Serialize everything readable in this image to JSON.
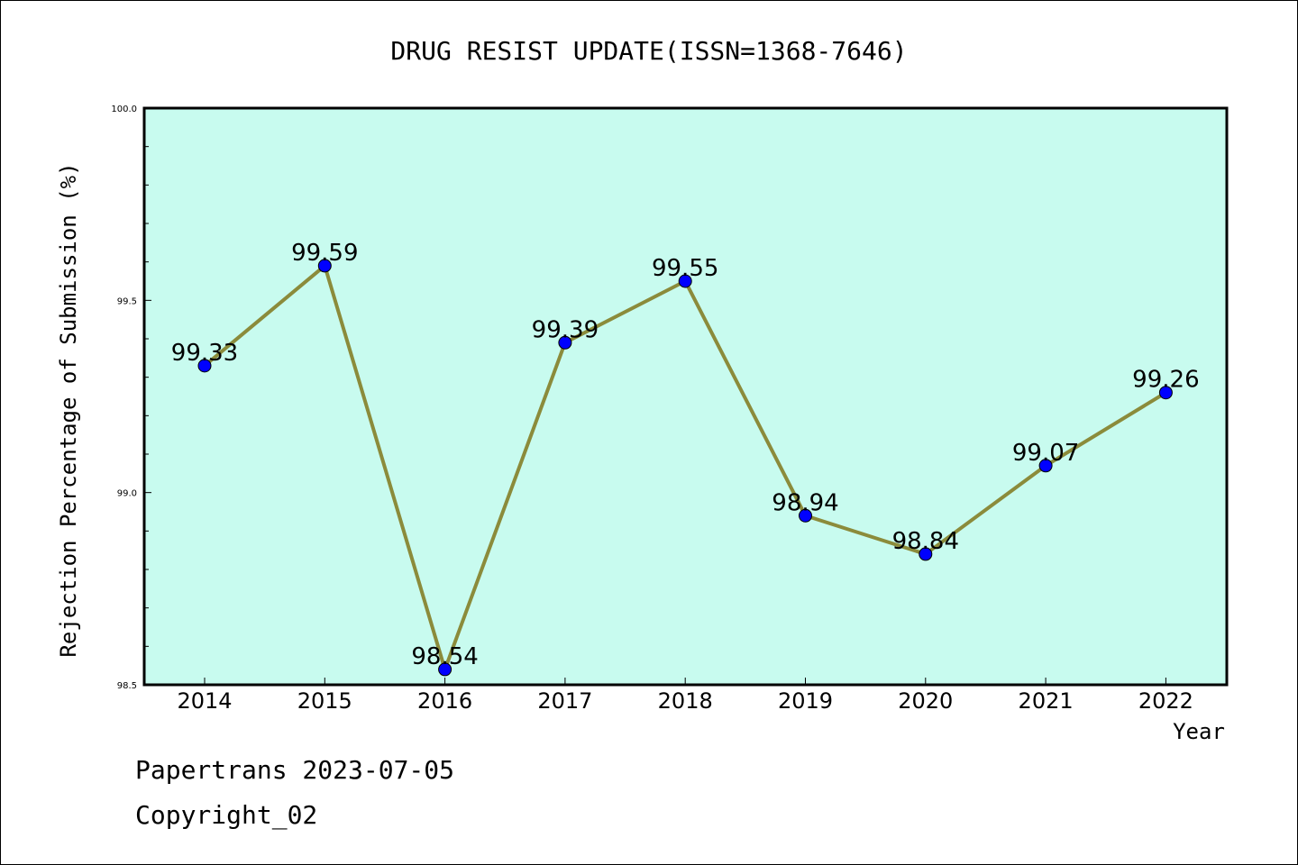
{
  "chart_data": {
    "type": "line",
    "title": "DRUG RESIST UPDATE(ISSN=1368-7646)",
    "xlabel": "Year",
    "ylabel": "Rejection Percentage of Submission (%)",
    "categories": [
      "2014",
      "2015",
      "2016",
      "2017",
      "2018",
      "2019",
      "2020",
      "2021",
      "2022"
    ],
    "values": [
      99.33,
      99.59,
      98.54,
      99.39,
      99.55,
      98.94,
      98.84,
      99.07,
      99.26
    ],
    "data_labels": [
      "99.33",
      "99.59",
      "98.54",
      "99.39",
      "99.55",
      "98.94",
      "98.84",
      "99.07",
      "99.26"
    ],
    "ylim": [
      98.5,
      100.0
    ],
    "yticks": [
      "98.5",
      "99.0",
      "99.5",
      "100.0"
    ],
    "grid": false,
    "colors": {
      "plot_background": "#c8fbef",
      "line": "#8b8b3b",
      "marker": "#0000ff"
    }
  },
  "footer": {
    "line1": "Papertrans 2023-07-05",
    "line2": "Copyright_02"
  }
}
